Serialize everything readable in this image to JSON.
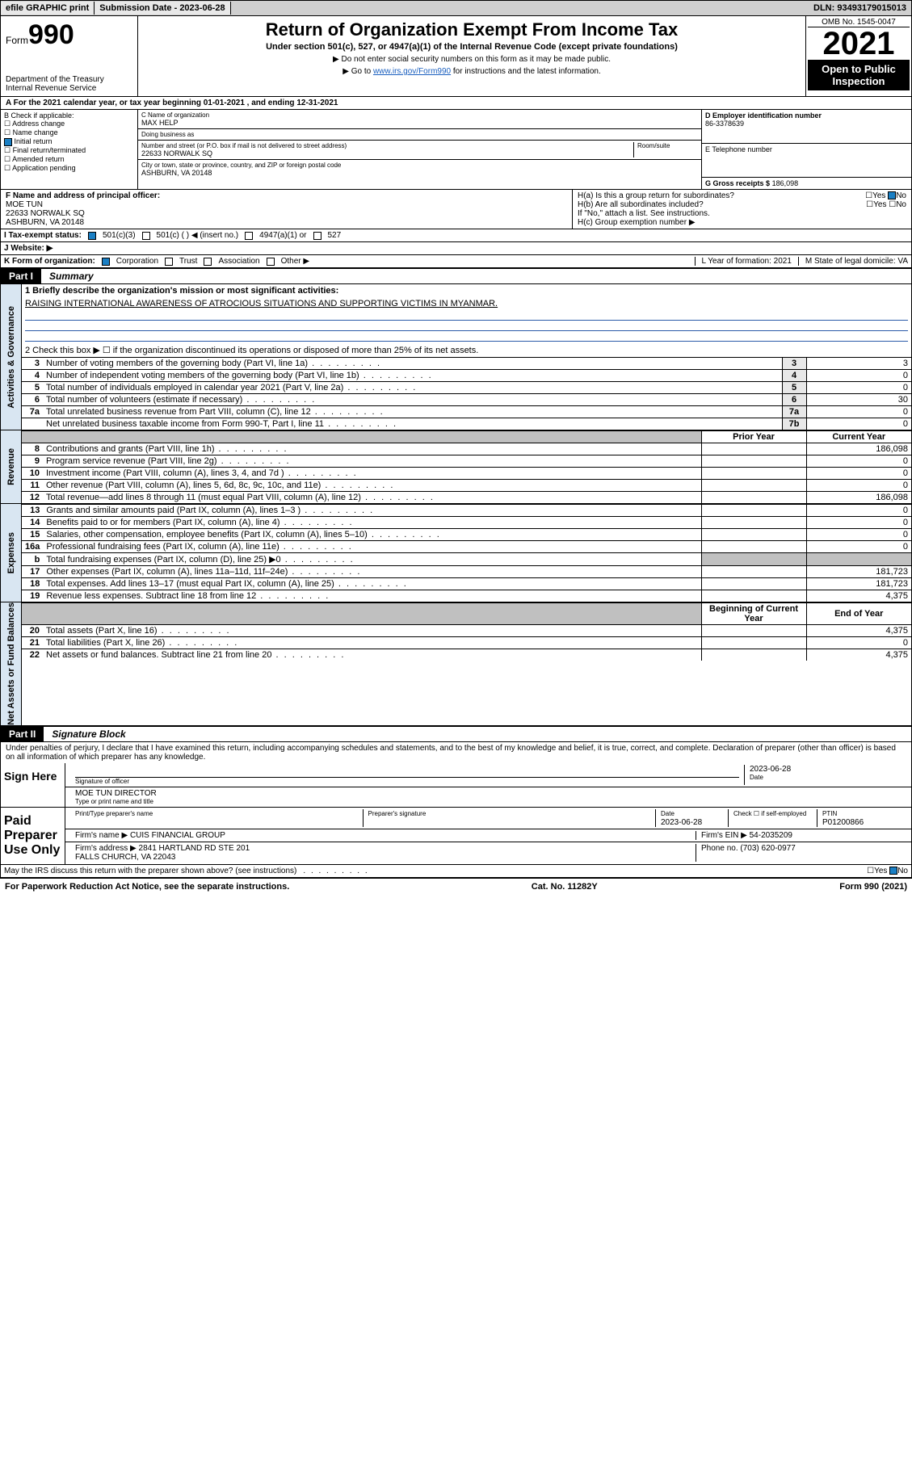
{
  "colors": {
    "topbar_bg": "#cfcfcf",
    "part_hdr_bg": "#000000",
    "side_label_bg": "#d9e6f2",
    "shade": "#c0c0c0",
    "link": "#1a5fbf",
    "rule": "#2a5aa8",
    "check_blue": "#1a7fc4"
  },
  "top": {
    "efile": "efile GRAPHIC print",
    "submission": "Submission Date - 2023-06-28",
    "dln": "DLN: 93493179015013"
  },
  "hdr": {
    "form": "Form",
    "form_no": "990",
    "dept": "Department of the Treasury Internal Revenue Service",
    "title": "Return of Organization Exempt From Income Tax",
    "sub": "Under section 501(c), 527, or 4947(a)(1) of the Internal Revenue Code (except private foundations)",
    "note1": "▶ Do not enter social security numbers on this form as it may be made public.",
    "note2a": "▶ Go to ",
    "note2_link": "www.irs.gov/Form990",
    "note2b": " for instructions and the latest information.",
    "omb": "OMB No. 1545-0047",
    "year": "2021",
    "inspect": "Open to Public Inspection"
  },
  "line_a": "A For the 2021 calendar year, or tax year beginning 01-01-2021   , and ending 12-31-2021",
  "box_b": {
    "title": "B Check if applicable:",
    "items": [
      "Address change",
      "Name change",
      "Initial return",
      "Final return/terminated",
      "Amended return",
      "Application pending"
    ],
    "checked_index": 2
  },
  "box_c": {
    "name_lbl": "C Name of organization",
    "name": "MAX HELP",
    "dba_lbl": "Doing business as",
    "dba": "",
    "addr_lbl": "Number and street (or P.O. box if mail is not delivered to street address)",
    "room_lbl": "Room/suite",
    "addr": "22633 NORWALK SQ",
    "city_lbl": "City or town, state or province, country, and ZIP or foreign postal code",
    "city": "ASHBURN, VA  20148"
  },
  "box_d": {
    "lbl": "D Employer identification number",
    "val": "86-3378639"
  },
  "box_e": {
    "lbl": "E Telephone number",
    "val": ""
  },
  "box_g": {
    "lbl": "G Gross receipts $",
    "val": "186,098"
  },
  "box_f": {
    "lbl": "F  Name and address of principal officer:",
    "val": "MOE TUN\n22633 NORWALK SQ\nASHBURN, VA  20148"
  },
  "box_h": {
    "a": "H(a)  Is this a group return for subordinates?",
    "b": "H(b)  Are all subordinates included?",
    "note": "If \"No,\" attach a list. See instructions.",
    "c": "H(c)  Group exemption number ▶",
    "yes": "Yes",
    "no": "No"
  },
  "row_i": {
    "lbl": "I   Tax-exempt status:",
    "opts": [
      "501(c)(3)",
      "501(c) (  ) ◀ (insert no.)",
      "4947(a)(1) or",
      "527"
    ]
  },
  "row_j": "J   Website: ▶",
  "row_k": {
    "lbl": "K Form of organization:",
    "opts": [
      "Corporation",
      "Trust",
      "Association",
      "Other ▶"
    ],
    "l": "L Year of formation: 2021",
    "m": "M State of legal domicile: VA"
  },
  "part1": {
    "lbl": "Part I",
    "ttl": "Summary"
  },
  "side_labels": [
    "Activities & Governance",
    "Revenue",
    "Expenses",
    "Net Assets or Fund Balances"
  ],
  "activities": {
    "l1": "1  Briefly describe the organization's mission or most significant activities:",
    "mission": "RAISING INTERNATIONAL AWARENESS OF ATROCIOUS SITUATIONS AND SUPPORTING VICTIMS IN MYANMAR.",
    "l2": "2   Check this box ▶ ☐  if the organization discontinued its operations or disposed of more than 25% of its net assets.",
    "rows": [
      {
        "n": "3",
        "t": "Number of voting members of the governing body (Part VI, line 1a)",
        "box": "3",
        "v": "3"
      },
      {
        "n": "4",
        "t": "Number of independent voting members of the governing body (Part VI, line 1b)",
        "box": "4",
        "v": "0"
      },
      {
        "n": "5",
        "t": "Total number of individuals employed in calendar year 2021 (Part V, line 2a)",
        "box": "5",
        "v": "0"
      },
      {
        "n": "6",
        "t": "Total number of volunteers (estimate if necessary)",
        "box": "6",
        "v": "30"
      },
      {
        "n": "7a",
        "t": "Total unrelated business revenue from Part VIII, column (C), line 12",
        "box": "7a",
        "v": "0"
      },
      {
        "n": "",
        "t": "Net unrelated business taxable income from Form 990-T, Part I, line 11",
        "box": "7b",
        "v": "0"
      }
    ]
  },
  "rev_hdr": {
    "prior": "Prior Year",
    "curr": "Current Year"
  },
  "revenue": [
    {
      "n": "8",
      "t": "Contributions and grants (Part VIII, line 1h)",
      "p": "",
      "c": "186,098"
    },
    {
      "n": "9",
      "t": "Program service revenue (Part VIII, line 2g)",
      "p": "",
      "c": "0"
    },
    {
      "n": "10",
      "t": "Investment income (Part VIII, column (A), lines 3, 4, and 7d )",
      "p": "",
      "c": "0"
    },
    {
      "n": "11",
      "t": "Other revenue (Part VIII, column (A), lines 5, 6d, 8c, 9c, 10c, and 11e)",
      "p": "",
      "c": "0"
    },
    {
      "n": "12",
      "t": "Total revenue—add lines 8 through 11 (must equal Part VIII, column (A), line 12)",
      "p": "",
      "c": "186,098"
    }
  ],
  "expenses": [
    {
      "n": "13",
      "t": "Grants and similar amounts paid (Part IX, column (A), lines 1–3 )",
      "p": "",
      "c": "0"
    },
    {
      "n": "14",
      "t": "Benefits paid to or for members (Part IX, column (A), line 4)",
      "p": "",
      "c": "0"
    },
    {
      "n": "15",
      "t": "Salaries, other compensation, employee benefits (Part IX, column (A), lines 5–10)",
      "p": "",
      "c": "0"
    },
    {
      "n": "16a",
      "t": "Professional fundraising fees (Part IX, column (A), line 11e)",
      "p": "",
      "c": "0"
    },
    {
      "n": "b",
      "t": "Total fundraising expenses (Part IX, column (D), line 25) ▶0",
      "p": "shade",
      "c": "shade"
    },
    {
      "n": "17",
      "t": "Other expenses (Part IX, column (A), lines 11a–11d, 11f–24e)",
      "p": "",
      "c": "181,723"
    },
    {
      "n": "18",
      "t": "Total expenses. Add lines 13–17 (must equal Part IX, column (A), line 25)",
      "p": "",
      "c": "181,723"
    },
    {
      "n": "19",
      "t": "Revenue less expenses. Subtract line 18 from line 12",
      "p": "",
      "c": "4,375"
    }
  ],
  "net_hdr": {
    "beg": "Beginning of Current Year",
    "end": "End of Year"
  },
  "net": [
    {
      "n": "20",
      "t": "Total assets (Part X, line 16)",
      "p": "",
      "c": "4,375"
    },
    {
      "n": "21",
      "t": "Total liabilities (Part X, line 26)",
      "p": "",
      "c": "0"
    },
    {
      "n": "22",
      "t": "Net assets or fund balances. Subtract line 21 from line 20",
      "p": "",
      "c": "4,375"
    }
  ],
  "part2": {
    "lbl": "Part II",
    "ttl": "Signature Block"
  },
  "perjury": "Under penalties of perjury, I declare that I have examined this return, including accompanying schedules and statements, and to the best of my knowledge and belief, it is true, correct, and complete. Declaration of preparer (other than officer) is based on all information of which preparer has any knowledge.",
  "sign": {
    "here": "Sign Here",
    "sig_officer": "Signature of officer",
    "date": "Date",
    "date_val": "2023-06-28",
    "name_title": "MOE TUN  DIRECTOR",
    "name_lbl": "Type or print name and title"
  },
  "preparer": {
    "here": "Paid Preparer Use Only",
    "print_lbl": "Print/Type preparer's name",
    "sig_lbl": "Preparer's signature",
    "date_lbl": "Date",
    "date_val": "2023-06-28",
    "check_lbl": "Check ☐ if self-employed",
    "ptin_lbl": "PTIN",
    "ptin": "P01200866",
    "firm_name_lbl": "Firm's name    ▶",
    "firm_name": "CUIS FINANCIAL GROUP",
    "firm_ein_lbl": "Firm's EIN ▶",
    "firm_ein": "54-2035209",
    "firm_addr_lbl": "Firm's address ▶",
    "firm_addr": "2841 HARTLAND RD STE 201\nFALLS CHURCH, VA  22043",
    "phone_lbl": "Phone no.",
    "phone": "(703) 620-0977"
  },
  "may_discuss": "May the IRS discuss this return with the preparer shown above? (see instructions)",
  "footer": {
    "left": "For Paperwork Reduction Act Notice, see the separate instructions.",
    "mid": "Cat. No. 11282Y",
    "right": "Form 990 (2021)"
  }
}
